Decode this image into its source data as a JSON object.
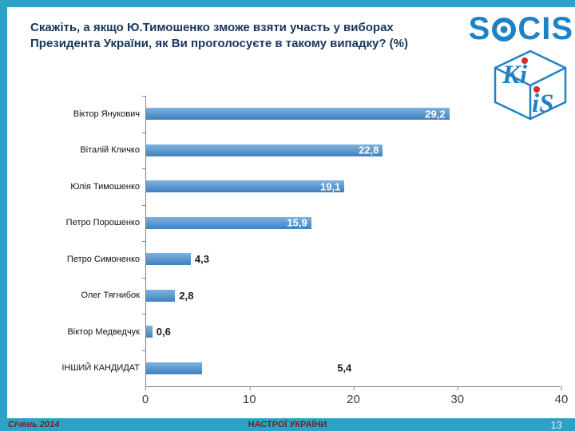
{
  "colors": {
    "teal": "#2BA3C6",
    "title_blue": "#17365D",
    "bar_light": "#7EB3E0",
    "bar_dark": "#4080BF",
    "logo_blue": "#1E82C6",
    "kiis_red": "#D22B2B",
    "footer_red": "#7E1B20",
    "page_grey": "#DCE9EF",
    "axis_grey": "#808080",
    "value_dark": "#1A1A1A"
  },
  "title": {
    "text": "Скажіть, а якщо Ю.Тимошенко зможе взяти участь у виборах Президента України, як Ви проголосуєте в такому випадку? (%)"
  },
  "logos": {
    "socis": {
      "s": "S",
      "cis": "CIS"
    },
    "kiis": {
      "top": "Ki",
      "bottom": "iS"
    }
  },
  "chart_data": {
    "type": "bar",
    "orientation": "horizontal",
    "title": "",
    "xlabel": "",
    "ylabel": "",
    "categories": [
      "Віктор Янукович",
      "Віталій Кличко",
      "Юлія Тимошенко",
      "Петро Порошенко",
      "Петро Симоненко",
      "Олег Тягнибок",
      "Віктор Медведчук",
      "ІНШИЙ КАНДИДАТ"
    ],
    "values": [
      29.2,
      22.8,
      19.1,
      15.9,
      4.3,
      2.8,
      0.6,
      5.4
    ],
    "value_labels": [
      "29,2",
      "22,8",
      "19,1",
      "15,9",
      "4,3",
      "2,8",
      "0,6",
      "5,4"
    ],
    "label_styles": [
      "inside",
      "inside",
      "inside",
      "inside",
      "outside",
      "outside",
      "outside",
      "detached"
    ],
    "x_ticks": [
      "0",
      "10",
      "20",
      "30",
      "40"
    ],
    "xlim": [
      0,
      40
    ],
    "grid": false,
    "legend": false
  },
  "footer": {
    "date": "Січень 2014",
    "center": "НАСТРОЇ УКРАЇНИ",
    "page": "13"
  }
}
